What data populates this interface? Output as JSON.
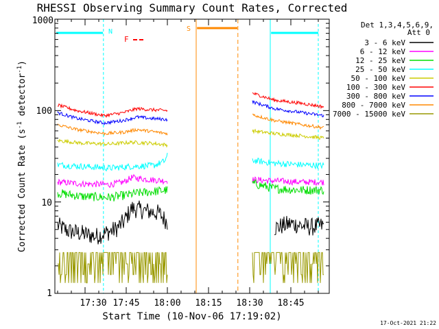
{
  "chart_data": {
    "type": "line",
    "title": "RHESSI Observing Summary Count Rates, Corrected",
    "xlabel": "Start Time (10-Nov-06 17:19:02)",
    "ylabel": "Corrected Count Rate (s",
    "ylabel_sup1": "-1",
    "ylabel_mid": " detector",
    "ylabel_sup2": "-1",
    "ylabel_end": ")",
    "y_scale": "log",
    "ylim": [
      1,
      1000
    ],
    "xlim_minutes": [
      0,
      100
    ],
    "x_ticks": [
      {
        "label": "17:30",
        "minute": 11
      },
      {
        "label": "17:45",
        "minute": 26
      },
      {
        "label": "18:00",
        "minute": 41
      },
      {
        "label": "18:15",
        "minute": 56
      },
      {
        "label": "18:30",
        "minute": 71
      },
      {
        "label": "18:45",
        "minute": 86
      }
    ],
    "y_ticks": [
      {
        "label": "1",
        "value": 1
      },
      {
        "label": "10",
        "value": 10
      },
      {
        "label": "100",
        "value": 100
      },
      {
        "label": "1000",
        "value": 1000
      }
    ],
    "legend": {
      "placement": "right",
      "header": [
        "Det 1,3,4,5,6,9,",
        "Att 0"
      ],
      "entries": [
        "3 - 6 keV",
        "6 - 12 keV",
        "12 - 25 keV",
        "25 - 50 keV",
        "50 - 100 keV",
        "100 - 300 keV",
        "300 - 800 keV",
        "800 - 7000 keV",
        "7000 - 15000 keV"
      ]
    },
    "series": [
      {
        "name": "3 - 6 keV",
        "color": "#000000",
        "seg1": [
          [
            1,
            5.5
          ],
          [
            5,
            4.8
          ],
          [
            10,
            4.5
          ],
          [
            15,
            4.2
          ],
          [
            22,
            5.0
          ],
          [
            25,
            6.0
          ],
          [
            28,
            8.5
          ],
          [
            33,
            8.0
          ],
          [
            38,
            7.5
          ],
          [
            41,
            6.0
          ]
        ],
        "seg2": [
          [
            80,
            5.2
          ],
          [
            86,
            5.8
          ],
          [
            90,
            5.5
          ],
          [
            93,
            5.3
          ],
          [
            98,
            5.5
          ]
        ],
        "noise": 0.1
      },
      {
        "name": "6 - 12 keV",
        "color": "#ff00ff",
        "seg1": [
          [
            1,
            16.5
          ],
          [
            10,
            15.8
          ],
          [
            20,
            15.5
          ],
          [
            25,
            16.5
          ],
          [
            28,
            18.5
          ],
          [
            35,
            17.5
          ],
          [
            41,
            17.0
          ]
        ],
        "seg2": [
          [
            72,
            17.5
          ],
          [
            80,
            17.0
          ],
          [
            90,
            16.5
          ],
          [
            98,
            16.5
          ]
        ],
        "noise": 0.035
      },
      {
        "name": "12 - 25 keV",
        "color": "#00dd00",
        "seg1": [
          [
            1,
            12.5
          ],
          [
            10,
            11.5
          ],
          [
            20,
            11.2
          ],
          [
            27,
            12.0
          ],
          [
            30,
            12.5
          ],
          [
            36,
            13.0
          ],
          [
            41,
            13.5
          ]
        ],
        "seg2": [
          [
            72,
            16.0
          ],
          [
            80,
            14.0
          ],
          [
            90,
            13.5
          ],
          [
            98,
            13.5
          ]
        ],
        "noise": 0.05
      },
      {
        "name": "25 - 50 keV",
        "color": "#00ffff",
        "seg1": [
          [
            1,
            25.5
          ],
          [
            10,
            24.5
          ],
          [
            20,
            23.5
          ],
          [
            28,
            24.5
          ],
          [
            36,
            25.0
          ],
          [
            40,
            28.0
          ],
          [
            41,
            32.0
          ]
        ],
        "seg2": [
          [
            72,
            28.5
          ],
          [
            80,
            26.5
          ],
          [
            90,
            25.5
          ],
          [
            98,
            25.0
          ]
        ],
        "noise": 0.035
      },
      {
        "name": "50 - 100 keV",
        "color": "#cccc00",
        "seg1": [
          [
            1,
            47
          ],
          [
            10,
            44
          ],
          [
            20,
            43
          ],
          [
            28,
            45
          ],
          [
            35,
            44
          ],
          [
            41,
            42
          ]
        ],
        "seg2": [
          [
            72,
            60
          ],
          [
            80,
            56
          ],
          [
            90,
            53
          ],
          [
            98,
            50
          ]
        ],
        "noise": 0.02
      },
      {
        "name": "100 - 300 keV",
        "color": "#ff0000",
        "seg1": [
          [
            1,
            115
          ],
          [
            8,
            100
          ],
          [
            18,
            88
          ],
          [
            25,
            95
          ],
          [
            30,
            105
          ],
          [
            35,
            102
          ],
          [
            41,
            100
          ]
        ],
        "seg2": [
          [
            72,
            155
          ],
          [
            80,
            130
          ],
          [
            90,
            120
          ],
          [
            98,
            110
          ]
        ],
        "noise": 0.018
      },
      {
        "name": "300 - 800 keV",
        "color": "#0000ff",
        "seg1": [
          [
            1,
            95
          ],
          [
            8,
            82
          ],
          [
            18,
            73
          ],
          [
            25,
            78
          ],
          [
            30,
            85
          ],
          [
            35,
            82
          ],
          [
            41,
            80
          ]
        ],
        "seg2": [
          [
            72,
            125
          ],
          [
            80,
            105
          ],
          [
            90,
            95
          ],
          [
            98,
            88
          ]
        ],
        "noise": 0.018
      },
      {
        "name": "800 - 7000 keV",
        "color": "#ff8800",
        "seg1": [
          [
            1,
            70
          ],
          [
            8,
            62
          ],
          [
            18,
            56
          ],
          [
            25,
            58
          ],
          [
            30,
            62
          ],
          [
            41,
            56
          ]
        ],
        "seg2": [
          [
            72,
            90
          ],
          [
            80,
            78
          ],
          [
            90,
            70
          ],
          [
            98,
            65
          ]
        ],
        "noise": 0.018
      },
      {
        "name": "7000 - 15000 keV",
        "color": "#999900",
        "seg1": [
          [
            1,
            2.8
          ],
          [
            41,
            2.8
          ]
        ],
        "seg2": [
          [
            72,
            2.8
          ],
          [
            98,
            2.8
          ]
        ],
        "noise": 0.15
      }
    ],
    "annotations": [
      {
        "label": "N",
        "color": "#00ffff",
        "kind": "night"
      },
      {
        "label": "F",
        "color": "#ff0000",
        "kind": "flare"
      },
      {
        "label": "S",
        "color": "#ff8800",
        "kind": "saa"
      }
    ],
    "timestamp": "17-Oct-2021 21:22"
  }
}
